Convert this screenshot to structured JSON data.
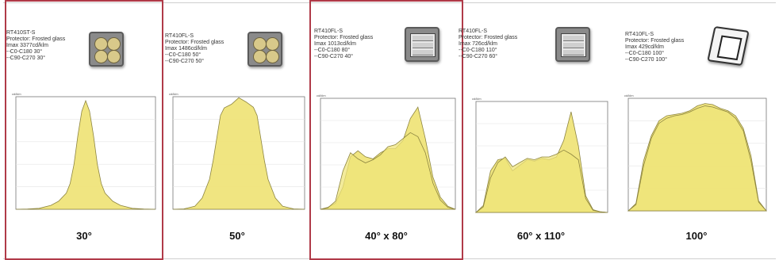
{
  "panels": [
    {
      "id": "30",
      "info": "RT410ST-S\nProtector: Frosted glass\nImax 3377cd/klm\n--C0-C180 30°\n--C90-C270 30°",
      "angle_label": "30°",
      "lamp": "quad",
      "highlight": true
    },
    {
      "id": "50",
      "info": "RT410FL-S\nProtector: Frosted glass\nImax 1486cd/klm\n--C0-C180 50°\n--C90-C270 50°",
      "angle_label": "50°",
      "lamp": "quad",
      "highlight": false
    },
    {
      "id": "40x80",
      "info": "RT410FL-S\nProtector: Frosted glass\nImax 1013cd/klm\n--C0-C180 80°\n--C90-C270 40°",
      "angle_label": "40° x 80°",
      "lamp": "rect",
      "highlight": true
    },
    {
      "id": "60x110",
      "info": "RT410FL-S\nProtector: Frosted glass\nImax 726cd/klm\n--C0-C180 110°\n--C90-C270 60°",
      "angle_label": "60° x 110°",
      "lamp": "rect",
      "highlight": false
    },
    {
      "id": "100",
      "info": "RT410FL-S\nProtector: Frosted glass\nImax 429cd/klm\n--C0-C180 100°\n--C90-C270 100°",
      "angle_label": "100°",
      "lamp": "tilt",
      "highlight": false
    }
  ],
  "colors": {
    "fill": "#efe47a",
    "stroke": "#8d8540",
    "highlight": "#b03a48"
  },
  "chart_data": [
    {
      "type": "area",
      "ylabel": "cd/klm",
      "x": [
        -90,
        -75,
        -60,
        -45,
        -35,
        -25,
        -20,
        -15,
        -10,
        -5,
        0,
        5,
        10,
        15,
        20,
        25,
        35,
        45,
        60,
        75,
        90
      ],
      "xlim": [
        -90,
        90
      ],
      "ylim": [
        0,
        3500
      ],
      "series": [
        {
          "values": [
            0,
            10,
            30,
            120,
            250,
            500,
            800,
            1400,
            2300,
            3050,
            3377,
            3050,
            2300,
            1400,
            800,
            500,
            250,
            120,
            30,
            10,
            0
          ]
        }
      ]
    },
    {
      "type": "area",
      "ylabel": "cd/klm",
      "x": [
        -90,
        -75,
        -60,
        -50,
        -40,
        -35,
        -30,
        -25,
        -20,
        -10,
        0,
        10,
        20,
        25,
        30,
        35,
        40,
        50,
        60,
        75,
        90
      ],
      "xlim": [
        -90,
        90
      ],
      "ylim": [
        0,
        1500
      ],
      "series": [
        {
          "values": [
            0,
            5,
            40,
            150,
            400,
            650,
            950,
            1250,
            1350,
            1400,
            1486,
            1430,
            1360,
            1250,
            950,
            650,
            400,
            150,
            40,
            5,
            0
          ]
        }
      ]
    },
    {
      "type": "area",
      "ylabel": "cd/klm",
      "x": [
        -90,
        -80,
        -70,
        -60,
        -50,
        -40,
        -30,
        -20,
        -10,
        0,
        10,
        20,
        30,
        40,
        50,
        60,
        70,
        80,
        90
      ],
      "xlim": [
        -90,
        90
      ],
      "ylim": [
        0,
        1100
      ],
      "series": [
        {
          "values": [
            0,
            20,
            60,
            220,
            520,
            580,
            520,
            500,
            560,
            600,
            600,
            680,
            900,
            1013,
            700,
            320,
            120,
            30,
            0
          ]
        },
        {
          "values": [
            0,
            15,
            80,
            380,
            560,
            500,
            460,
            490,
            540,
            620,
            640,
            700,
            760,
            720,
            560,
            260,
            90,
            20,
            0
          ]
        }
      ]
    },
    {
      "type": "area",
      "ylabel": "cd/klm",
      "x": [
        -90,
        -80,
        -70,
        -60,
        -50,
        -40,
        -30,
        -20,
        -10,
        0,
        10,
        20,
        30,
        40,
        50,
        60,
        70,
        80,
        90
      ],
      "xlim": [
        -90,
        90
      ],
      "ylim": [
        0,
        800
      ],
      "series": [
        {
          "values": [
            0,
            50,
            300,
            380,
            390,
            300,
            340,
            380,
            370,
            390,
            380,
            400,
            520,
            726,
            480,
            120,
            20,
            5,
            0
          ]
        },
        {
          "values": [
            0,
            40,
            250,
            360,
            400,
            330,
            360,
            390,
            380,
            400,
            400,
            420,
            450,
            420,
            380,
            100,
            15,
            5,
            0
          ]
        }
      ]
    },
    {
      "type": "area",
      "ylabel": "cd/klm",
      "x": [
        -90,
        -80,
        -70,
        -60,
        -50,
        -40,
        -30,
        -20,
        -10,
        0,
        10,
        20,
        30,
        40,
        50,
        60,
        70,
        80,
        90
      ],
      "xlim": [
        -90,
        90
      ],
      "ylim": [
        0,
        450
      ],
      "series": [
        {
          "values": [
            0,
            30,
            200,
            300,
            360,
            380,
            385,
            390,
            400,
            420,
            429,
            425,
            410,
            400,
            380,
            330,
            220,
            40,
            0
          ]
        },
        {
          "values": [
            0,
            25,
            180,
            290,
            350,
            370,
            380,
            385,
            395,
            410,
            420,
            415,
            405,
            395,
            370,
            320,
            200,
            35,
            0
          ]
        }
      ]
    }
  ]
}
